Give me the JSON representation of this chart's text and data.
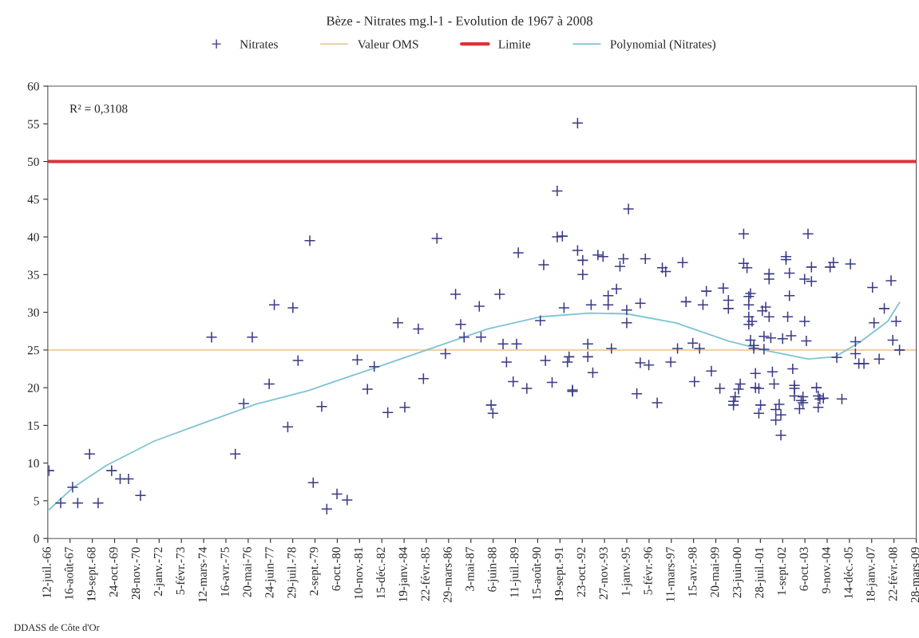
{
  "chart_data": {
    "type": "scatter",
    "title": "Bèze - Nitrates mg.l-1 - Evolution de 1967 à 2008",
    "xlim": [
      "1966-07-12",
      "2009-03-28"
    ],
    "xticks": [
      {
        "value": "1966-07-12",
        "label": "12-juil.-66"
      },
      {
        "value": "1967-08-16",
        "label": "16-août-67"
      },
      {
        "value": "1968-09-19",
        "label": "19-sept.-68"
      },
      {
        "value": "1969-10-24",
        "label": "24-oct.-69"
      },
      {
        "value": "1970-11-28",
        "label": "28-nov.-70"
      },
      {
        "value": "1972-01-02",
        "label": "2-janv.-72"
      },
      {
        "value": "1973-02-05",
        "label": "5-févr.-73"
      },
      {
        "value": "1974-03-12",
        "label": "12-mars-74"
      },
      {
        "value": "1975-04-16",
        "label": "16-avr.-75"
      },
      {
        "value": "1976-05-20",
        "label": "20-mai-76"
      },
      {
        "value": "1977-06-24",
        "label": "24-juin-77"
      },
      {
        "value": "1978-07-29",
        "label": "29-juil.-78"
      },
      {
        "value": "1979-09-02",
        "label": "2-sept.-79"
      },
      {
        "value": "1980-10-06",
        "label": "6-oct.-80"
      },
      {
        "value": "1981-11-10",
        "label": "10-nov.-81"
      },
      {
        "value": "1982-12-15",
        "label": "15-déc.-82"
      },
      {
        "value": "1984-01-19",
        "label": "19-janv.-84"
      },
      {
        "value": "1985-02-22",
        "label": "22-févr.-85"
      },
      {
        "value": "1986-03-29",
        "label": "29-mars-86"
      },
      {
        "value": "1987-05-03",
        "label": "3-mai-87"
      },
      {
        "value": "1988-06-06",
        "label": "6-juin-88"
      },
      {
        "value": "1989-07-11",
        "label": "11-juil.-89"
      },
      {
        "value": "1990-08-15",
        "label": "15-août-90"
      },
      {
        "value": "1991-09-19",
        "label": "19-sept.-91"
      },
      {
        "value": "1992-10-23",
        "label": "23-oct.-92"
      },
      {
        "value": "1993-11-27",
        "label": "27-nov.-93"
      },
      {
        "value": "1995-01-01",
        "label": "1-janv.-95"
      },
      {
        "value": "1996-02-05",
        "label": "5-févr.-96"
      },
      {
        "value": "1997-03-11",
        "label": "11-mars-97"
      },
      {
        "value": "1998-04-15",
        "label": "15-avr.-98"
      },
      {
        "value": "1999-05-20",
        "label": "20-mai-99"
      },
      {
        "value": "2000-06-23",
        "label": "23-juin-00"
      },
      {
        "value": "2001-07-28",
        "label": "28-juil.-01"
      },
      {
        "value": "2002-09-01",
        "label": "1-sept.-02"
      },
      {
        "value": "2003-10-06",
        "label": "6-oct.-03"
      },
      {
        "value": "2004-11-09",
        "label": "9-nov.-04"
      },
      {
        "value": "2005-12-14",
        "label": "14-déc.-05"
      },
      {
        "value": "2007-01-18",
        "label": "18-janv.-07"
      },
      {
        "value": "2008-02-22",
        "label": "22-févr.-08"
      },
      {
        "value": "2009-03-28",
        "label": "28-mars-09"
      }
    ],
    "ylim": [
      0,
      60
    ],
    "yticks": [
      0,
      5,
      10,
      15,
      20,
      25,
      30,
      35,
      40,
      45,
      50,
      55,
      60
    ],
    "legend": "top",
    "series": [
      {
        "name": "Nitrates",
        "marker": "cross",
        "color": "#3a3a86",
        "x": [
          "1966-08",
          "1967-03",
          "1967-10",
          "1968-01",
          "1968-08",
          "1969-01",
          "1969-09",
          "1970-02",
          "1970-07",
          "1971-02",
          "1974-08",
          "1975-10",
          "1976-03",
          "1976-08",
          "1977-06",
          "1977-09",
          "1978-05",
          "1978-08",
          "1978-11",
          "1979-06",
          "1979-08",
          "1980-01",
          "1980-04",
          "1980-10",
          "1981-04",
          "1981-10",
          "1982-04",
          "1982-08",
          "1983-04",
          "1983-10",
          "1984-02",
          "1984-10",
          "1985-01",
          "1985-09",
          "1986-02",
          "1986-08",
          "1986-11",
          "1987-01",
          "1987-10",
          "1987-11",
          "1988-05",
          "1988-06",
          "1988-10",
          "1988-12",
          "1989-02",
          "1989-06",
          "1989-08",
          "1989-09",
          "1990-02",
          "1990-10",
          "1990-12",
          "1991-01",
          "1991-05",
          "1991-08",
          "1991-08",
          "1991-11",
          "1991-12",
          "1992-02",
          "1992-03",
          "1992-05",
          "1992-05",
          "1992-08",
          "1992-08",
          "1992-11",
          "1992-11",
          "1993-02",
          "1993-02",
          "1993-04",
          "1993-05",
          "1993-08",
          "1993-11",
          "1994-02",
          "1994-02",
          "1994-04",
          "1994-07",
          "1994-09",
          "1994-11",
          "1995-01",
          "1995-01",
          "1995-02",
          "1995-07",
          "1995-09",
          "1995-09",
          "1995-12",
          "1996-02",
          "1996-07",
          "1996-10",
          "1996-12",
          "1997-03",
          "1997-07",
          "1997-10",
          "1997-12",
          "1998-04",
          "1998-05",
          "1998-08",
          "1998-10",
          "1998-12",
          "1999-03",
          "1999-08",
          "1999-10",
          "2000-01",
          "2000-01",
          "2000-04",
          "2000-04",
          "2000-05",
          "2000-07",
          "2000-08",
          "2000-10",
          "2000-10",
          "2000-12",
          "2001-01",
          "2001-01",
          "2001-01",
          "2001-01",
          "2001-02",
          "2001-02",
          "2001-03",
          "2001-04",
          "2001-04",
          "2001-05",
          "2001-05",
          "2001-07",
          "2001-07",
          "2001-08",
          "2001-09",
          "2001-10",
          "2001-10",
          "2001-11",
          "2002-01",
          "2002-01",
          "2002-01",
          "2002-02",
          "2002-03",
          "2002-04",
          "2002-05",
          "2002-05",
          "2002-07",
          "2002-08",
          "2002-08",
          "2002-09",
          "2002-11",
          "2002-11",
          "2002-12",
          "2003-01",
          "2003-01",
          "2003-02",
          "2003-03",
          "2003-04",
          "2003-04",
          "2003-04",
          "2003-07",
          "2003-08",
          "2003-09",
          "2003-09",
          "2003-10",
          "2003-10",
          "2003-11",
          "2003-12",
          "2004-02",
          "2004-02",
          "2004-05",
          "2004-06",
          "2004-06",
          "2004-07",
          "2004-09",
          "2005-01",
          "2005-03",
          "2005-05",
          "2005-08",
          "2006-01",
          "2006-04",
          "2006-04",
          "2006-06",
          "2006-09",
          "2007-02",
          "2007-03",
          "2007-06",
          "2007-09",
          "2008-01",
          "2008-02",
          "2008-04",
          "2008-06"
        ],
        "values": [
          9.0,
          4.7,
          6.8,
          4.7,
          11.2,
          4.7,
          9.0,
          7.9,
          7.9,
          5.7,
          26.7,
          11.2,
          17.9,
          26.7,
          20.5,
          31.0,
          14.8,
          30.6,
          23.6,
          39.5,
          7.4,
          17.5,
          3.9,
          5.9,
          5.1,
          23.7,
          19.8,
          22.8,
          16.7,
          28.6,
          17.4,
          27.8,
          21.2,
          39.8,
          24.5,
          32.4,
          28.4,
          26.7,
          30.8,
          26.7,
          17.7,
          16.6,
          32.4,
          25.8,
          23.4,
          20.8,
          25.8,
          37.9,
          19.9,
          28.9,
          36.3,
          23.6,
          20.7,
          46.1,
          40.0,
          40.1,
          30.6,
          23.4,
          24.1,
          19.7,
          19.5,
          38.2,
          55.1,
          36.9,
          35.0,
          25.8,
          24.1,
          31.0,
          22.0,
          37.6,
          37.4,
          31.0,
          32.2,
          25.2,
          33.1,
          36.1,
          37.1,
          30.3,
          28.6,
          43.7,
          19.2,
          23.3,
          31.2,
          37.1,
          23.0,
          18.0,
          35.9,
          35.4,
          23.4,
          25.2,
          36.6,
          31.4,
          25.9,
          20.8,
          25.2,
          31.0,
          32.8,
          22.2,
          19.9,
          33.2,
          31.6,
          30.5,
          18.2,
          17.7,
          18.8,
          19.8,
          20.5,
          40.4,
          36.5,
          35.9,
          28.4,
          32.1,
          31.0,
          29.4,
          26.3,
          32.5,
          28.8,
          25.6,
          25.2,
          21.9,
          20.0,
          19.9,
          16.6,
          17.7,
          30.2,
          26.8,
          25.1,
          30.7,
          35.1,
          34.4,
          29.4,
          26.6,
          22.1,
          20.5,
          17.1,
          15.7,
          17.8,
          16.4,
          13.7,
          26.5,
          37.4,
          37.0,
          29.4,
          32.2,
          35.2,
          26.9,
          22.5,
          19.9,
          18.9,
          20.3,
          17.2,
          18.3,
          18.8,
          18.0,
          34.4,
          28.8,
          26.2,
          40.4,
          36.0,
          34.1,
          20.0,
          18.9,
          17.4,
          18.5,
          18.6,
          36.0,
          36.6,
          24.0,
          18.5,
          36.4,
          26.1,
          24.5,
          23.2,
          23.2,
          33.3,
          28.6,
          23.8,
          30.5,
          34.2,
          26.3,
          28.8,
          25.0
        ]
      },
      {
        "name": "Polynomial (Nitrates)",
        "type": "line",
        "color": "#7ec4d4",
        "x": [
          "1966-08",
          "1967-10",
          "1969-06",
          "1971-10",
          "1974-03",
          "1976-10",
          "1979-05",
          "1980-11",
          "1982-08",
          "1985-08",
          "1988-03",
          "1990-10",
          "1993-03",
          "1995-01",
          "1997-06",
          "2000-01",
          "2001-12",
          "2003-12",
          "2005-04",
          "2006-07",
          "2007-11",
          "2008-06"
        ],
        "values": [
          3.8,
          6.7,
          9.7,
          12.9,
          15.3,
          17.8,
          19.6,
          21.0,
          22.6,
          25.4,
          27.8,
          29.4,
          29.9,
          29.8,
          28.6,
          26.2,
          24.9,
          23.8,
          24.1,
          26.1,
          28.8,
          31.3
        ]
      }
    ],
    "ref_lines": [
      {
        "axis": "y",
        "value": 25,
        "label": "Valeur OMS",
        "color": "#f0d2a8"
      },
      {
        "axis": "y",
        "value": 50,
        "label": "Limite",
        "color": "#e0303c"
      }
    ],
    "annotations": [
      "R² = 0,3108",
      "DDASS de Côte d'Or"
    ]
  }
}
